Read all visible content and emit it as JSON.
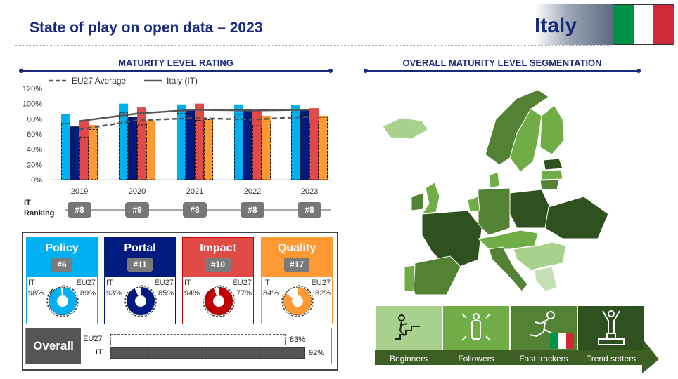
{
  "header": {
    "title": "State of play on open data – 2023",
    "country": "Italy",
    "flag_colors": [
      "#009246",
      "#ffffff",
      "#ce2b37"
    ]
  },
  "sections": {
    "left": "MATURITY LEVEL RATING",
    "right": "OVERALL MATURITY LEVEL SEGMENTATION"
  },
  "chart_data": {
    "type": "bar",
    "categories": [
      "2019",
      "2020",
      "2021",
      "2022",
      "2023"
    ],
    "ylim": [
      0,
      120
    ],
    "yticks": [
      "0%",
      "20%",
      "40%",
      "60%",
      "80%",
      "100%",
      "120%"
    ],
    "series": [
      {
        "name": "Policy",
        "color": "#00b0f0",
        "values": [
          86,
          100,
          99,
          99,
          98
        ],
        "eu27": [
          74,
          88,
          87,
          86,
          89
        ]
      },
      {
        "name": "Portal",
        "color": "#001b80",
        "values": [
          70,
          83,
          91,
          93,
          93
        ],
        "eu27": [
          69,
          79,
          87,
          83,
          85
        ]
      },
      {
        "name": "Impact",
        "color": "#e04b48",
        "values": [
          78,
          95,
          100,
          90,
          94
        ],
        "eu27": [
          56,
          72,
          78,
          71,
          77
        ]
      },
      {
        "name": "Quality",
        "color": "#ff9933",
        "values": [
          72,
          78,
          79,
          84,
          84
        ],
        "eu27": [
          66,
          77,
          79,
          77,
          82
        ]
      }
    ],
    "lines": [
      {
        "name": "EU27 Average",
        "values": [
          66,
          78,
          81,
          79,
          83
        ],
        "style": "dashed"
      },
      {
        "name": "Italy (IT)",
        "values": [
          77,
          87,
          92,
          91,
          92
        ],
        "style": "solid"
      }
    ],
    "legend": [
      "EU27 Average",
      "Italy (IT)"
    ]
  },
  "ranking": {
    "label_1": "IT",
    "label_2": "Ranking",
    "values": [
      "#8",
      "#9",
      "#8",
      "#8",
      "#8"
    ]
  },
  "dimensions": [
    {
      "name": "Policy",
      "rank": "#6",
      "it_label": "IT",
      "it": "98%",
      "eu_label": "EU27",
      "eu": "89%",
      "color": "#00b0f0",
      "it_val": 98,
      "eu_val": 89
    },
    {
      "name": "Portal",
      "rank": "#11",
      "it_label": "IT",
      "it": "93%",
      "eu_label": "EU27",
      "eu": "85%",
      "color": "#001b80",
      "it_val": 93,
      "eu_val": 85
    },
    {
      "name": "Impact",
      "rank": "#10",
      "it_label": "IT",
      "it": "94%",
      "eu_label": "EU27",
      "eu": "77%",
      "color": "#c00000",
      "it_val": 94,
      "eu_val": 77
    },
    {
      "name": "Quality",
      "rank": "#17",
      "it_label": "IT",
      "it": "84%",
      "eu_label": "EU27",
      "eu": "82%",
      "color": "#ff9933",
      "it_val": 84,
      "eu_val": 82
    }
  ],
  "overall": {
    "label": "Overall",
    "eu_label": "EU27",
    "eu": "83%",
    "eu_val": 83,
    "it_label": "IT",
    "it": "92%",
    "it_val": 92
  },
  "segments": [
    {
      "name": "Beginners",
      "color": "#a9d18e",
      "icon": "stairs-icon"
    },
    {
      "name": "Followers",
      "color": "#70ad47",
      "icon": "person-expand-icon"
    },
    {
      "name": "Fast trackers",
      "color": "#548235",
      "icon": "runner-icon"
    },
    {
      "name": "Trend setters",
      "color": "#2f5120",
      "icon": "podium-icon"
    }
  ]
}
